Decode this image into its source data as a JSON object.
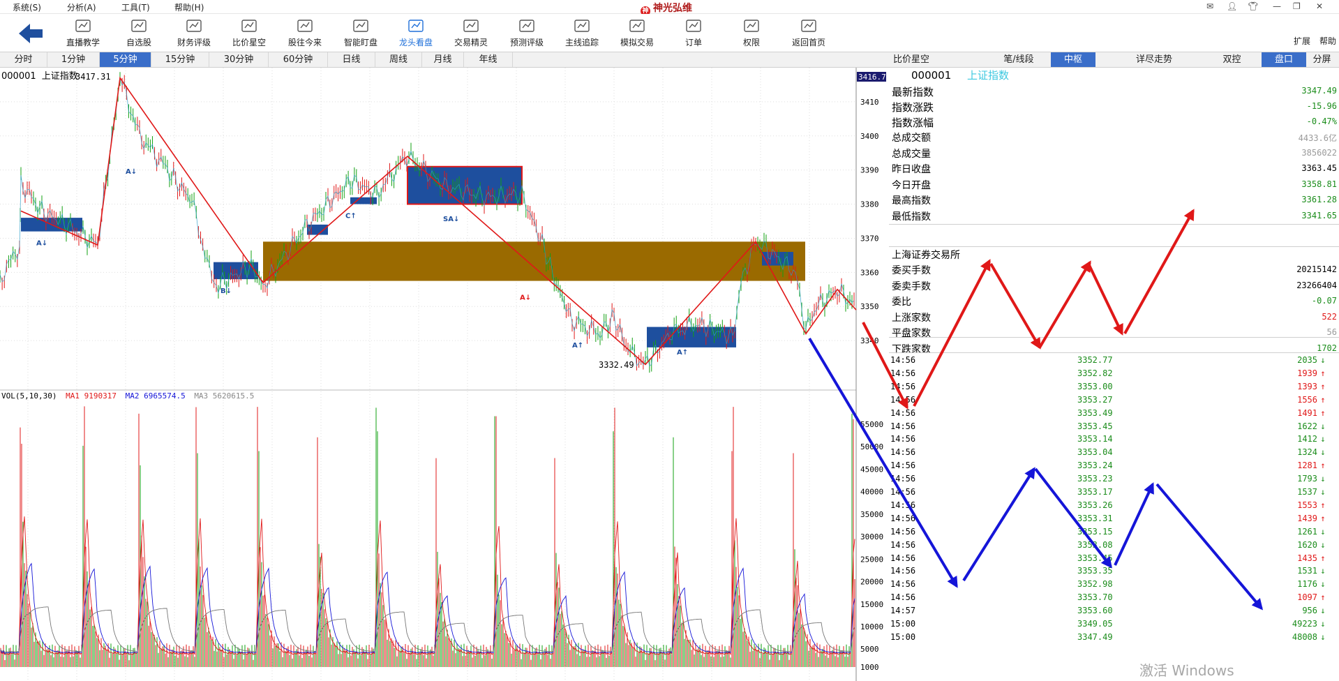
{
  "menu": [
    "系统(S)",
    "分析(A)",
    "工具(T)",
    "帮助(H)"
  ],
  "brand": "神光弘维",
  "toolbar": {
    "items": [
      {
        "label": "直播教学",
        "icon": "play-icon"
      },
      {
        "label": "自选股",
        "icon": "star-chart-icon"
      },
      {
        "label": "财务评级",
        "icon": "finance-grade-icon"
      },
      {
        "label": "比价星空",
        "icon": "star-trend-icon"
      },
      {
        "label": "股往今来",
        "icon": "history-cube-icon"
      },
      {
        "label": "智能盯盘",
        "icon": "monitor-bars-icon"
      },
      {
        "label": "龙头看盘",
        "icon": "dragon-head-icon"
      },
      {
        "label": "交易精灵",
        "icon": "trade-sprite-icon"
      },
      {
        "label": "预测评级",
        "icon": "ai-forecast-icon"
      },
      {
        "label": "主线追踪",
        "icon": "target-icon"
      },
      {
        "label": "模拟交易",
        "icon": "simulate-trade-icon"
      },
      {
        "label": "订单",
        "icon": "order-doc-icon"
      },
      {
        "label": "权限",
        "icon": "shield-icon"
      },
      {
        "label": "返回首页",
        "icon": "home-icon"
      }
    ],
    "active_index": 6,
    "right_labels": [
      "扩展",
      "帮助"
    ]
  },
  "periods": [
    "分时",
    "1分钟",
    "5分钟",
    "15分钟",
    "30分钟",
    "60分钟",
    "日线",
    "周线",
    "月线",
    "年线"
  ],
  "active_period": 2,
  "right_tabs": [
    "比价星空",
    "笔/线段",
    "中枢",
    "详尽走势",
    "双控",
    "盘口",
    "分屏"
  ],
  "right_active": [
    2,
    5
  ],
  "chart": {
    "code": "000001",
    "name": "上证指数",
    "current_price_tag": "3416.7",
    "high_label": "3417.31",
    "low_label": "3332.49",
    "price_ticks": [
      "3410",
      "3400",
      "3390",
      "3380",
      "3370",
      "3360",
      "3350",
      "3340"
    ],
    "volume_ticks": [
      "55000",
      "50000",
      "45000",
      "40000",
      "35000",
      "30000",
      "25000",
      "20000",
      "15000",
      "10000",
      "5000",
      "1000"
    ],
    "vol_legend": {
      "label": "VOL(5,10,30)",
      "ma1": "MA1 9190317",
      "ma2": "MA2 6965574.5",
      "ma3": "MA3 5620615.5"
    },
    "markers": [
      "A↓",
      "A↓",
      "B↓",
      "C↑",
      "SA↓",
      "A↓",
      "A↑",
      "A↑"
    ],
    "colors": {
      "up": "#e01818",
      "down": "#12a012",
      "zhongshu_box": "#1e4f9e",
      "big_box": "#9a6a00",
      "bi_line": "#e01818"
    }
  },
  "quote": {
    "code": "000001",
    "name": "上证指数",
    "rows": [
      {
        "k": "最新指数",
        "v": "3347.49",
        "c": "#1a8c1a",
        "big": true
      },
      {
        "k": "指数涨跌",
        "v": "-15.96",
        "c": "#1a8c1a",
        "big": true
      },
      {
        "k": "指数涨幅",
        "v": "-0.47%",
        "c": "#1a8c1a",
        "big": true
      },
      {
        "k": "总成交额",
        "v": "4433.6亿",
        "c": "#9a9a9a"
      },
      {
        "k": "总成交量",
        "v": "3856022",
        "c": "#9a9a9a"
      },
      {
        "k": "昨日收盘",
        "v": "3363.45",
        "c": "#000"
      },
      {
        "k": "今日开盘",
        "v": "3358.81",
        "c": "#1a8c1a"
      },
      {
        "k": "最高指数",
        "v": "3361.28",
        "c": "#1a8c1a"
      },
      {
        "k": "最低指数",
        "v": "3341.65",
        "c": "#1a8c1a"
      }
    ],
    "exchange": "上海证券交易所",
    "rows2": [
      {
        "k": "委买手数",
        "v": "20215142",
        "c": "#000"
      },
      {
        "k": "委卖手数",
        "v": "23266404",
        "c": "#000"
      },
      {
        "k": "委比",
        "v": "-0.07",
        "c": "#1a8c1a"
      },
      {
        "k": "上涨家数",
        "v": "522",
        "c": "#e01818"
      },
      {
        "k": "平盘家数",
        "v": "56",
        "c": "#9a9a9a"
      },
      {
        "k": "下跌家数",
        "v": "1702",
        "c": "#1a8c1a"
      }
    ]
  },
  "ticks": [
    {
      "t": "14:56",
      "p": "3352.77",
      "v": "2035",
      "d": "down"
    },
    {
      "t": "14:56",
      "p": "3352.82",
      "v": "1939",
      "d": "up"
    },
    {
      "t": "14:56",
      "p": "3353.00",
      "v": "1393",
      "d": "up"
    },
    {
      "t": "14:56",
      "p": "3353.27",
      "v": "1556",
      "d": "up"
    },
    {
      "t": "14:56",
      "p": "3353.49",
      "v": "1491",
      "d": "up"
    },
    {
      "t": "14:56",
      "p": "3353.45",
      "v": "1622",
      "d": "down"
    },
    {
      "t": "14:56",
      "p": "3353.14",
      "v": "1412",
      "d": "down"
    },
    {
      "t": "14:56",
      "p": "3353.04",
      "v": "1324",
      "d": "down"
    },
    {
      "t": "14:56",
      "p": "3353.24",
      "v": "1281",
      "d": "up"
    },
    {
      "t": "14:56",
      "p": "3353.23",
      "v": "1793",
      "d": "down"
    },
    {
      "t": "14:56",
      "p": "3353.17",
      "v": "1537",
      "d": "down"
    },
    {
      "t": "14:56",
      "p": "3353.26",
      "v": "1553",
      "d": "up"
    },
    {
      "t": "14:56",
      "p": "3353.31",
      "v": "1439",
      "d": "up"
    },
    {
      "t": "14:56",
      "p": "3353.15",
      "v": "1261",
      "d": "down"
    },
    {
      "t": "14:56",
      "p": "3353.08",
      "v": "1620",
      "d": "down"
    },
    {
      "t": "14:56",
      "p": "3353.45",
      "v": "1435",
      "d": "up"
    },
    {
      "t": "14:56",
      "p": "3353.35",
      "v": "1531",
      "d": "down"
    },
    {
      "t": "14:56",
      "p": "3352.98",
      "v": "1176",
      "d": "down"
    },
    {
      "t": "14:56",
      "p": "3353.70",
      "v": "1097",
      "d": "up"
    },
    {
      "t": "14:57",
      "p": "3353.60",
      "v": "956",
      "d": "down"
    },
    {
      "t": "15:00",
      "p": "3349.05",
      "v": "49223",
      "d": "down"
    },
    {
      "t": "15:00",
      "p": "3347.49",
      "v": "48008",
      "d": "down"
    }
  ],
  "watermark": "激活 Windows"
}
